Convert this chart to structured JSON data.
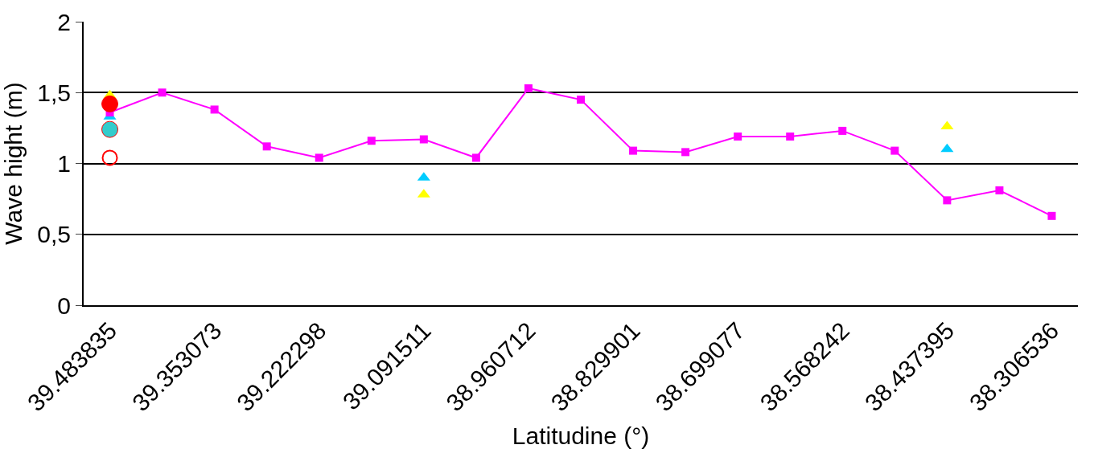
{
  "chart_data": {
    "type": "line",
    "xlabel": "Latitudine (°)",
    "ylabel": "Wave hight (m)",
    "categories": [
      "39.483835",
      null,
      "39.353073",
      null,
      "39.222298",
      null,
      "39.091511",
      null,
      "38.960712",
      null,
      "38.829901",
      null,
      "38.699077",
      null,
      "38.568242",
      null,
      "38.437395",
      null,
      "38.306536"
    ],
    "ylim": [
      0,
      2
    ],
    "yticks": [
      0,
      {
        "value": 0.5,
        "label": "0,5"
      },
      1,
      {
        "value": 1.5,
        "label": "1,5"
      },
      2
    ],
    "grid": "y",
    "legend": false,
    "series": [
      {
        "type": "scatter",
        "marker": "triangle",
        "color": "#ffff00",
        "values": [
          1.48,
          null,
          null,
          null,
          null,
          null,
          0.78,
          null,
          null,
          null,
          null,
          null,
          null,
          null,
          null,
          null,
          1.26,
          null,
          null
        ]
      },
      {
        "type": "scatter",
        "marker": "triangle",
        "color": "#00ccff",
        "values": [
          1.33,
          null,
          null,
          null,
          null,
          null,
          0.9,
          null,
          null,
          null,
          null,
          null,
          null,
          null,
          null,
          null,
          1.1,
          null,
          null
        ]
      },
      {
        "marker": "square",
        "color": "#ff00ff",
        "values": [
          1.36,
          1.5,
          1.38,
          1.12,
          1.04,
          1.16,
          1.17,
          1.04,
          1.53,
          1.45,
          1.09,
          1.08,
          1.19,
          1.19,
          1.23,
          1.09,
          0.74,
          0.81,
          0.63
        ]
      },
      {
        "type": "scatter",
        "marker": "circle",
        "color": "#ff0000",
        "values": [
          1.42,
          null,
          null,
          null,
          null,
          null,
          null,
          null,
          null,
          null,
          null,
          null,
          null,
          null,
          null,
          null,
          null,
          null,
          null
        ]
      },
      {
        "type": "scatter",
        "marker": "circle",
        "color": "#33cccc",
        "values": [
          1.24,
          null,
          null,
          null,
          null,
          null,
          null,
          null,
          null,
          null,
          null,
          null,
          null,
          null,
          null,
          null,
          null,
          null,
          null
        ]
      },
      {
        "type": "scatter",
        "marker": "circle-open",
        "color": "#ff0000",
        "values": [
          1.04,
          null,
          null,
          null,
          null,
          null,
          null,
          null,
          null,
          null,
          null,
          null,
          null,
          null,
          null,
          null,
          null,
          null,
          null
        ]
      }
    ]
  }
}
